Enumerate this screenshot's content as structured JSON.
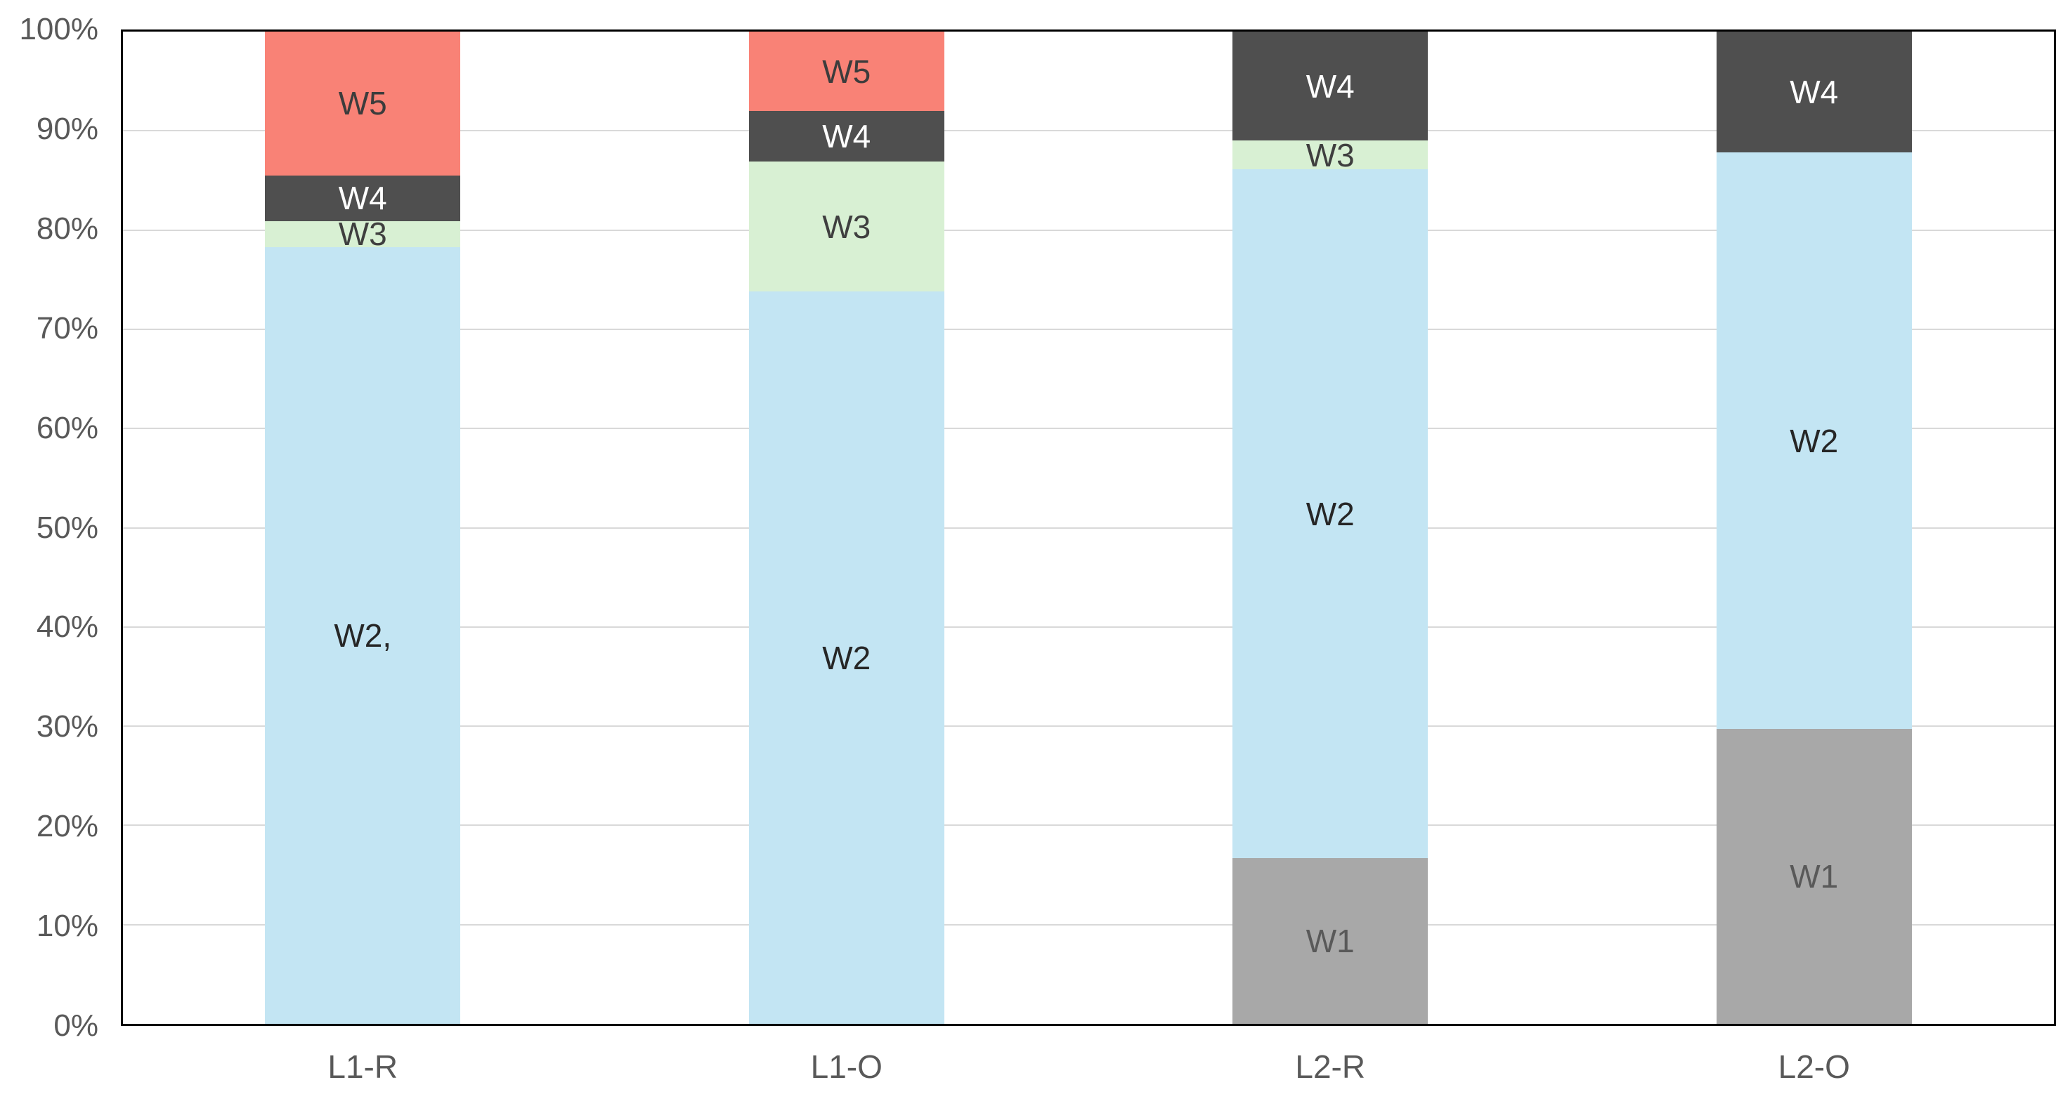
{
  "chart_data": {
    "type": "bar",
    "subtype": "stacked-100-percent",
    "title": "",
    "xlabel": "",
    "ylabel": "",
    "categories": [
      "L1-R",
      "L1-O",
      "L2-R",
      "L2-O"
    ],
    "series": [
      {
        "name": "W1",
        "color": "#A8A8A8",
        "label_color": "#595959",
        "values": [
          0,
          0,
          16.7,
          29.7
        ],
        "labels": [
          "",
          "",
          "W1",
          "W1"
        ]
      },
      {
        "name": "W2",
        "color": "#C3E5F3",
        "label_color": "#262626",
        "values": [
          78.3,
          73.8,
          69.4,
          58.1
        ],
        "labels": [
          "W2,",
          "W2",
          "W2",
          "W2"
        ]
      },
      {
        "name": "W3",
        "color": "#D8F0D3",
        "label_color": "#3F3F3F",
        "values": [
          2.6,
          13.1,
          2.9,
          0
        ],
        "labels": [
          "W3",
          "W3",
          "W3",
          ""
        ]
      },
      {
        "name": "W4",
        "color": "#4F4F4F",
        "label_color": "#FFFFFF",
        "values": [
          4.6,
          5.1,
          11.0,
          12.2
        ],
        "labels": [
          "W4",
          "W4",
          "W4",
          "W4"
        ]
      },
      {
        "name": "W5",
        "color": "#F98276",
        "label_color": "#3C3C3C",
        "values": [
          14.5,
          8.0,
          0,
          0
        ],
        "labels": [
          "W5",
          "W5",
          "",
          ""
        ]
      }
    ],
    "y_axis": {
      "min": 0,
      "max": 100,
      "tick_step": 10,
      "tick_labels": [
        "0%",
        "10%",
        "20%",
        "30%",
        "40%",
        "50%",
        "60%",
        "70%",
        "80%",
        "90%",
        "100%"
      ]
    },
    "legend": "none",
    "grid": true,
    "style": {
      "gridline_color": "#D9D9D9",
      "border_color": "#000000",
      "tick_text_color": "#595959",
      "category_text_color": "#595959",
      "background": "#FFFFFF"
    }
  }
}
